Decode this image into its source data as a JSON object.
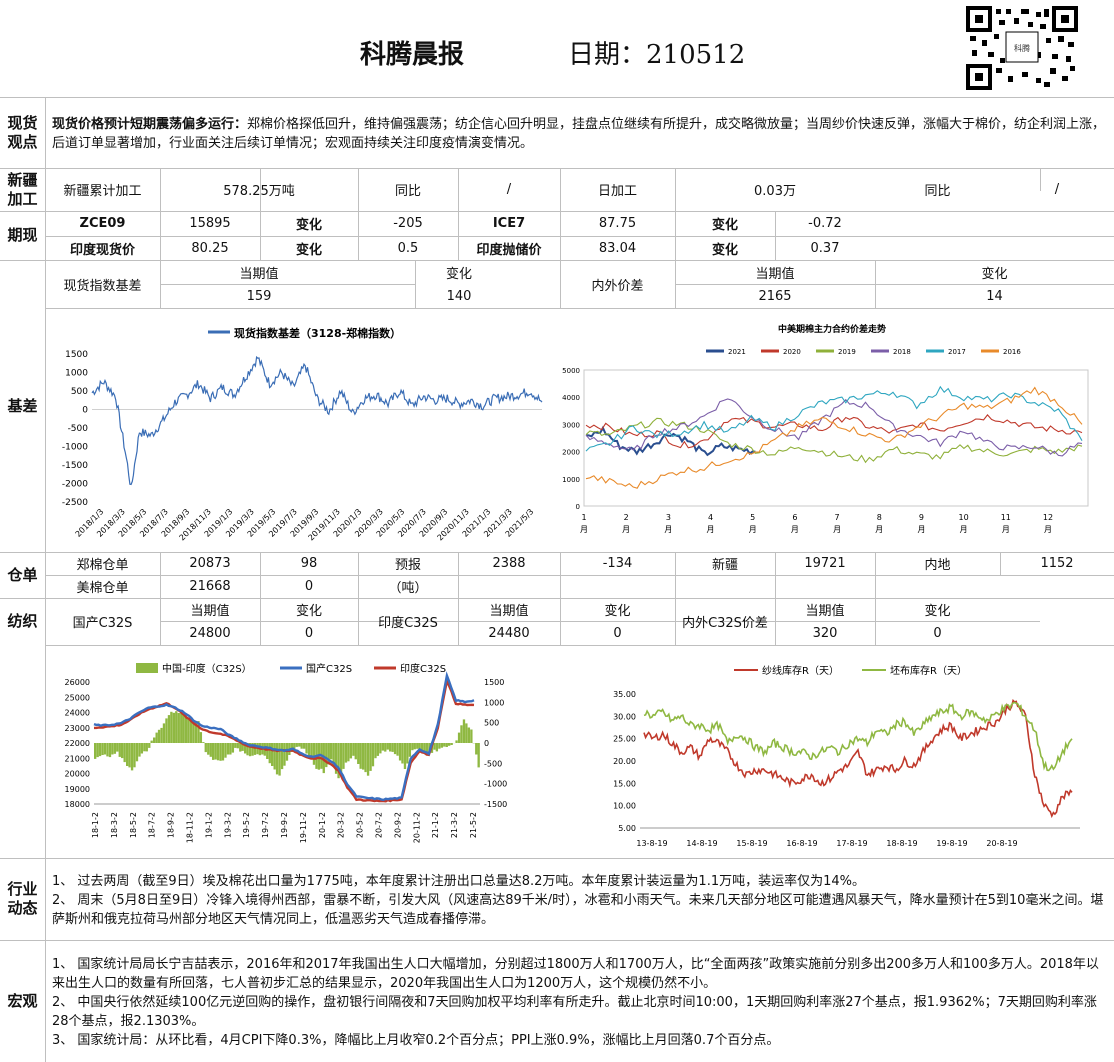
{
  "header": {
    "title": "科腾晨报",
    "date_label": "日期：210512",
    "qr_caption": "科腾"
  },
  "spot": {
    "label": "现货观点",
    "lead": "现货价格预计短期震荡偏多运行：",
    "text": "郑棉价格探低回升，维持偏强震荡；纺企信心回升明显，挂盘点位继续有所提升，成交略微放量；当周纱价快速反弹，涨幅大于棉价，纺企利润上涨，后道订单显著增加，行业面关注后续订单情况；宏观面持续关注印度疫情演变情况。"
  },
  "xinjiang": {
    "label": "新疆加工",
    "k1": "新疆累计加工",
    "v1": "578.25万吨",
    "k2": "同比",
    "v2": "/",
    "k3": "日加工",
    "v3": "0.03万",
    "k4": "同比",
    "v4": "/"
  },
  "futures": {
    "label": "期现",
    "r1": [
      "ZCE09",
      "15895",
      "变化",
      "-205",
      "ICE7",
      "87.75",
      "变化",
      "-0.72"
    ],
    "r2": [
      "印度现货价",
      "80.25",
      "变化",
      "0.5",
      "印度抛储价",
      "83.04",
      "变化",
      "0.37"
    ]
  },
  "basis": {
    "label": "基差",
    "k1": "现货指数基差",
    "h_cur": "当期值",
    "h_chg": "变化",
    "v1_cur": "159",
    "v1_chg": "140",
    "k2": "内外价差",
    "v2_cur": "2165",
    "v2_chg": "14"
  },
  "warehouse": {
    "label": "仓单",
    "r1": [
      "郑棉仓单",
      "20873",
      "98",
      "预报",
      "2388",
      "-134",
      "新疆",
      "19721",
      "内地",
      "1152"
    ],
    "r2": [
      "美棉仓单",
      "21668",
      "0",
      "（吨）"
    ]
  },
  "textile": {
    "label": "纺织",
    "k1": "国产C32S",
    "k2": "印度C32S",
    "k3": "内外C32S价差",
    "h_cur": "当期值",
    "h_chg": "变化",
    "v1": [
      "24800",
      "0"
    ],
    "v2": [
      "24480",
      "0"
    ],
    "v3": [
      "320",
      "0"
    ]
  },
  "industry": {
    "label": "行业动态",
    "items": [
      "1、 过去两周（截至9日）埃及棉花出口量为1775吨，本年度累计注册出口总量达8.2万吨。本年度累计装运量为1.1万吨，装运率仅为14%。",
      "2、 周末（5月8日至9日）冷锋入境得州西部，雷暴不断，引发大风（风速高达89千米/时），冰雹和小雨天气。未来几天部分地区可能遭遇风暴天气，降水量预计在5到10毫米之间。堪萨斯州和俄克拉荷马州部分地区天气情况同上，低温恶劣天气造成春播停滞。"
    ]
  },
  "macro": {
    "label": "宏观",
    "items": [
      "1、 国家统计局局长宁吉喆表示，2016年和2017年我国出生人口大幅增加，分别超过1800万人和1700万人，比“全面两孩”政策实施前分别多出200多万人和100多万人。2018年以来出生人口的数量有所回落，七人普初步汇总的结果显示，2020年我国出生人口为1200万人，这个规模仍然不小。",
      "2、 中国央行依然延续100亿元逆回购的操作，盘初银行间隔夜和7天回购加权平均利率有所走升。截止北京时间10:00，1天期回购利率涨27个基点，报1.9362%；7天期回购利率涨28个基点，报2.1303%。",
      "3、 国家统计局：从环比看，4月CPI下降0.3%，降幅比上月收窄0.2个百分点；PPI上涨0.9%，涨幅比上月回落0.7个百分点。"
    ]
  },
  "chart_data": [
    {
      "type": "line",
      "title": "",
      "series": [
        {
          "name": "现货指数基差（3128-郑棉指数）",
          "color": "#3a6db5"
        }
      ],
      "x_ticks": [
        "2018/1/3",
        "2018/3/3",
        "2018/5/3",
        "2018/7/3",
        "2018/9/3",
        "2018/11/3",
        "2019/1/3",
        "2019/3/3",
        "2019/5/3",
        "2019/7/3",
        "2019/9/3",
        "2019/11/3",
        "2020/1/3",
        "2020/3/3",
        "2020/5/3",
        "2020/7/3",
        "2020/9/3",
        "2020/11/3",
        "2021/1/3",
        "2021/3/3",
        "2021/5/3"
      ],
      "y_ticks": [
        -2500,
        -2000,
        -1500,
        -1000,
        -500,
        0,
        500,
        1000,
        1500
      ],
      "ylim": [
        -2500,
        1500
      ],
      "points": [
        [
          0,
          450
        ],
        [
          1,
          750
        ],
        [
          2,
          350
        ],
        [
          3,
          -1500
        ],
        [
          3.3,
          -2150
        ],
        [
          4,
          -600
        ],
        [
          5,
          -700
        ],
        [
          6,
          -300
        ],
        [
          7,
          200
        ],
        [
          8,
          400
        ],
        [
          9,
          700
        ],
        [
          10,
          300
        ],
        [
          11,
          600
        ],
        [
          12,
          400
        ],
        [
          13,
          900
        ],
        [
          14,
          1400
        ],
        [
          15,
          700
        ],
        [
          16,
          1000
        ],
        [
          17,
          600
        ],
        [
          18,
          1200
        ],
        [
          19,
          300
        ],
        [
          20,
          -50
        ],
        [
          21,
          500
        ],
        [
          22,
          -100
        ],
        [
          23,
          300
        ],
        [
          24,
          400
        ],
        [
          25,
          150
        ],
        [
          26,
          500
        ],
        [
          27,
          100
        ],
        [
          28,
          350
        ],
        [
          29,
          250
        ],
        [
          30,
          300
        ],
        [
          31,
          150
        ],
        [
          32,
          250
        ],
        [
          33,
          100
        ],
        [
          34,
          300
        ],
        [
          35,
          350
        ],
        [
          36,
          400
        ],
        [
          37,
          500
        ],
        [
          38,
          200
        ]
      ]
    },
    {
      "type": "line",
      "title": "中美期棉主力合约价差走势",
      "x_ticks": [
        "1月",
        "2月",
        "3月",
        "4月",
        "5月",
        "6月",
        "7月",
        "8月",
        "9月",
        "10月",
        "11月",
        "12月"
      ],
      "y_ticks": [
        0,
        1000,
        2000,
        3000,
        4000,
        5000
      ],
      "ylim": [
        0,
        5000
      ],
      "series": [
        {
          "name": "2021",
          "color": "#2a4e8f",
          "values": [
            2500,
            2800,
            2200,
            2000,
            2300,
            2700,
            2400,
            1900,
            2200,
            2100,
            2000
          ]
        },
        {
          "name": "2020",
          "color": "#c0392b",
          "values": [
            3000,
            2900,
            2600,
            2700,
            2200,
            2400,
            3200,
            3100,
            2900,
            3000,
            2800,
            3300,
            2900,
            2700,
            3000,
            2800,
            3100,
            3300,
            3100,
            2900,
            2800,
            2700
          ]
        },
        {
          "name": "2019",
          "color": "#8fb03a",
          "values": [
            2700,
            2600,
            2900,
            3100,
            3000,
            2800,
            2300,
            2100,
            1900,
            2200,
            2000,
            1800,
            1700,
            2100,
            1900,
            1800,
            2200,
            2000,
            1900,
            2100,
            2000,
            2200
          ]
        },
        {
          "name": "2018",
          "color": "#7b5ea8",
          "values": [
            2500,
            2300,
            2000,
            2700,
            2900,
            3300,
            4000,
            3300,
            2800,
            2500,
            3200,
            3800,
            3700,
            2900,
            2600,
            2300,
            2800,
            2300,
            2100,
            2200,
            1900,
            2300
          ]
        },
        {
          "name": "2017",
          "color": "#2ea6c0",
          "values": [
            2000,
            2300,
            2900,
            2600,
            2700,
            3000,
            2700,
            3200,
            2900,
            3400,
            3800,
            3900,
            4100,
            4200,
            3700,
            4300,
            4000,
            3900,
            4100,
            3800,
            3500,
            2400
          ]
        },
        {
          "name": "2016",
          "color": "#e88a2a",
          "values": [
            1100,
            900,
            700,
            1000,
            1300,
            1400,
            1700,
            1900,
            2400,
            2900,
            3200,
            2900,
            2600,
            2400,
            2900,
            3300,
            3700,
            3600,
            3900,
            4300,
            3800,
            3000
          ]
        }
      ]
    },
    {
      "type": "line",
      "title": "",
      "x_ticks": [
        "18-1-2",
        "18-3-2",
        "18-5-2",
        "18-7-2",
        "18-9-2",
        "18-11-2",
        "19-1-2",
        "19-3-2",
        "19-5-2",
        "19-7-2",
        "19-9-2",
        "19-11-2",
        "20-1-2",
        "20-3-2",
        "20-5-2",
        "20-7-2",
        "20-9-2",
        "20-11-2",
        "21-1-2",
        "21-3-2",
        "21-5-2"
      ],
      "y_left_ticks": [
        18000,
        19000,
        20000,
        21000,
        22000,
        23000,
        24000,
        25000,
        26000
      ],
      "y_right_ticks": [
        -1500,
        -1000,
        -500,
        0,
        500,
        1000,
        1500
      ],
      "series": [
        {
          "name": "中国-印度（C32S）",
          "type": "bar",
          "axis": "right",
          "color": "#8fb842",
          "values": [
            -400,
            -300,
            -350,
            -250,
            -450,
            -700,
            -300,
            -200,
            150,
            400,
            700,
            800,
            700,
            600,
            500,
            -200,
            -400,
            -450,
            -300,
            -150,
            -200,
            -300,
            -250,
            -350,
            -600,
            -800,
            -400,
            -150,
            -100,
            -300,
            -600,
            -700,
            -400,
            -900,
            -500,
            -300,
            -600,
            -800,
            -400,
            -200,
            -200,
            -300,
            -600,
            -200,
            -150,
            -300,
            -200,
            -100,
            -100,
            100,
            600,
            300,
            -600
          ]
        },
        {
          "name": "国产C32S",
          "type": "line",
          "axis": "left",
          "color": "#3a6fc0",
          "values": [
            23200,
            23150,
            23200,
            23300,
            23600,
            24000,
            24300,
            24400,
            24500,
            24300,
            24000,
            23500,
            23100,
            23000,
            22900,
            22500,
            22200,
            21900,
            21800,
            21700,
            21600,
            21500,
            21600,
            21300,
            21100,
            21200,
            20900,
            20400,
            19300,
            18500,
            18400,
            18350,
            18300,
            18350,
            18400,
            21000,
            21600,
            21300,
            23200,
            26400,
            24800,
            24700,
            24800
          ]
        },
        {
          "name": "印度C32S",
          "type": "line",
          "axis": "left",
          "color": "#c0392b",
          "values": [
            23000,
            23050,
            23100,
            23200,
            23500,
            23900,
            24200,
            24400,
            24600,
            24300,
            23800,
            23300,
            22900,
            22700,
            22600,
            22400,
            22100,
            21800,
            21700,
            21600,
            21500,
            21500,
            21500,
            21200,
            21000,
            21000,
            20700,
            20200,
            19100,
            18300,
            18250,
            18200,
            18200,
            18250,
            18300,
            20700,
            21500,
            21200,
            23000,
            26100,
            24600,
            24500,
            24500
          ]
        }
      ]
    },
    {
      "type": "line",
      "title": "",
      "x_ticks": [
        "13-8-19",
        "14-8-19",
        "15-8-19",
        "16-8-19",
        "17-8-19",
        "18-8-19",
        "19-8-19",
        "20-8-19"
      ],
      "y_ticks": [
        5,
        10,
        15,
        20,
        25,
        30,
        35
      ],
      "ylim": [
        5,
        35
      ],
      "series": [
        {
          "name": "纱线库存R（天）",
          "color": "#c0392b",
          "values": [
            26,
            25,
            26,
            24,
            22,
            23,
            21,
            25,
            24,
            22,
            19,
            17,
            18,
            18,
            17,
            16,
            15,
            16,
            17,
            15,
            16,
            18,
            19,
            22,
            17,
            18,
            19,
            18,
            20,
            19,
            22,
            25,
            27,
            28,
            25,
            26,
            27,
            28,
            29,
            32,
            33,
            30,
            17,
            10,
            8,
            12,
            13
          ]
        },
        {
          "name": "坯布库存R（天）",
          "color": "#8fb842",
          "values": [
            31,
            30,
            31,
            29,
            30,
            28,
            28,
            27,
            28,
            24,
            26,
            25,
            23,
            22,
            24,
            23,
            22,
            22,
            21,
            22,
            23,
            22,
            24,
            25,
            24,
            27,
            26,
            28,
            29,
            26,
            28,
            30,
            31,
            32,
            30,
            31,
            30,
            29,
            31,
            32,
            33,
            30,
            27,
            19,
            18,
            22,
            25
          ]
        }
      ]
    }
  ]
}
